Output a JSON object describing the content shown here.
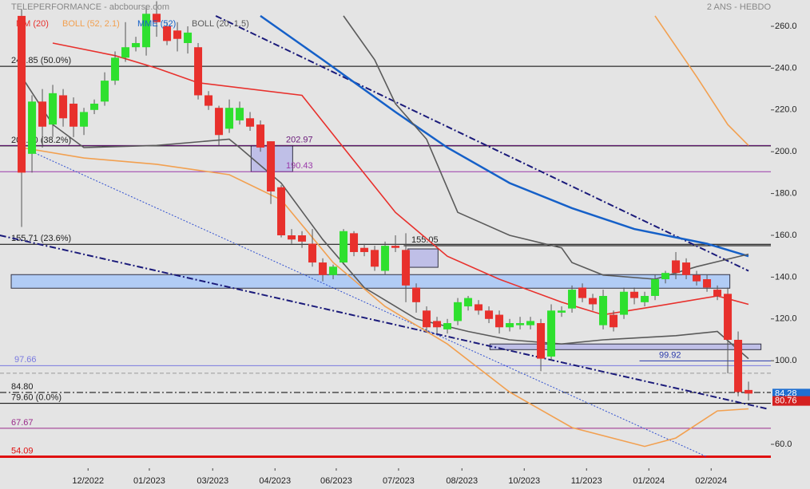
{
  "chart_data": {
    "type": "candlestick",
    "title": "TELEPERFORMANCE - abcbourse.com",
    "subtitle": "2 ANS - HEBDO",
    "up_color": "#2ee02e",
    "down_color": "#e8302c",
    "xlim": [
      -2.08,
      72.15
    ],
    "ylim": [
      47.4,
      272.6
    ],
    "xticks": [
      {
        "value": 6.4,
        "label": "12/2022"
      },
      {
        "value": 12.3,
        "label": "01/2023"
      },
      {
        "value": 18.4,
        "label": "03/2023"
      },
      {
        "value": 24.4,
        "label": "04/2023"
      },
      {
        "value": 30.3,
        "label": "06/2023"
      },
      {
        "value": 36.3,
        "label": "07/2023"
      },
      {
        "value": 42.4,
        "label": "08/2023"
      },
      {
        "value": 48.4,
        "label": "10/2023"
      },
      {
        "value": 54.4,
        "label": "11/2023"
      },
      {
        "value": 60.4,
        "label": "01/2024"
      },
      {
        "value": 66.4,
        "label": "02/2024"
      }
    ],
    "yticks": [
      {
        "value": 60,
        "label": "60.0"
      },
      {
        "value": 100,
        "label": "100.0"
      },
      {
        "value": 120,
        "label": "120.0"
      },
      {
        "value": 140,
        "label": "140.0"
      },
      {
        "value": 160,
        "label": "160.0"
      },
      {
        "value": 180,
        "label": "180.0"
      },
      {
        "value": 200,
        "label": "200.0"
      },
      {
        "value": 220,
        "label": "220.0"
      },
      {
        "value": 240,
        "label": "240.0"
      },
      {
        "value": 260,
        "label": "260.0"
      }
    ],
    "open": [
      265,
      199,
      224,
      213,
      227,
      223,
      212,
      220,
      224,
      234,
      245,
      250,
      250,
      266,
      260,
      258,
      252,
      250,
      227,
      221,
      211,
      215,
      216,
      213,
      205,
      183,
      160,
      160,
      156,
      147,
      141,
      147,
      161,
      154,
      153,
      143,
      155,
      153,
      135,
      124,
      119,
      115,
      119,
      126,
      127,
      124,
      122,
      116,
      117,
      117,
      118,
      102,
      123,
      125,
      135,
      130,
      117,
      122,
      122,
      133,
      128,
      131,
      139,
      148,
      147,
      141,
      139,
      134,
      132,
      110,
      86
    ],
    "high": [
      268,
      227,
      230,
      232,
      230,
      226,
      221,
      225,
      238,
      248,
      262,
      255,
      270,
      272,
      262,
      262,
      260,
      252,
      229,
      222,
      225,
      224,
      219,
      215,
      205,
      184,
      163,
      162,
      163,
      149,
      146,
      163,
      162,
      156,
      155,
      157,
      160,
      161,
      137,
      126,
      121,
      120,
      130,
      131,
      129,
      126,
      124,
      120,
      121,
      121,
      120,
      127,
      126,
      136,
      137,
      132,
      134,
      124,
      135,
      135,
      133,
      141,
      143,
      152,
      149,
      143,
      141,
      136,
      135,
      114,
      90
    ],
    "low": [
      164,
      190,
      202,
      207,
      212,
      207,
      208,
      218,
      222,
      232,
      243,
      248,
      246,
      255,
      251,
      248,
      247,
      225,
      220,
      203,
      209,
      213,
      210,
      200,
      175,
      159,
      156,
      154,
      145,
      138,
      139,
      146,
      150,
      150,
      143,
      141,
      152,
      128,
      123,
      114,
      113,
      113,
      117,
      124,
      122,
      118,
      113,
      114,
      115,
      115,
      95,
      100,
      121,
      123,
      128,
      124,
      115,
      114,
      120,
      127,
      126,
      129,
      137,
      139,
      139,
      136,
      133,
      129,
      94,
      83,
      81
    ],
    "close": [
      190,
      224,
      212,
      228,
      216,
      212,
      219,
      223,
      234,
      245,
      250,
      252,
      266,
      262,
      253,
      254,
      257,
      227,
      222,
      208,
      221,
      221,
      212,
      202,
      181,
      160,
      158,
      157,
      147,
      141,
      145,
      162,
      152,
      152,
      145,
      155,
      154,
      136,
      128,
      116,
      116,
      118,
      128,
      130,
      124,
      120,
      116,
      118,
      118,
      119,
      101,
      124,
      124,
      134,
      130,
      127,
      131,
      116,
      133,
      130,
      131,
      139,
      142,
      142,
      141,
      138,
      135,
      131,
      110,
      85,
      84.28
    ],
    "series": [
      {
        "name": "MM (20)",
        "color": "#e8302c",
        "x": [
          3,
          9,
          13,
          17,
          27,
          31,
          36,
          41,
          46,
          52,
          56,
          61,
          67,
          70
        ],
        "values": [
          252,
          246,
          240,
          233,
          227,
          202,
          171,
          150,
          139,
          128,
          122,
          126,
          131,
          127
        ]
      },
      {
        "name": "BOLL (52, 2.1)",
        "color": "#f2a050",
        "x": [
          61,
          65,
          68,
          70
        ],
        "values": [
          265,
          236,
          213,
          203
        ],
        "x2": [
          0,
          6,
          13,
          20,
          25,
          30,
          35,
          41,
          47,
          53,
          60,
          63,
          67,
          70
        ],
        "values2": [
          202,
          197,
          194,
          189,
          177,
          147,
          126,
          108,
          85,
          68,
          59,
          63,
          76,
          77
        ]
      },
      {
        "name": "MME (52)",
        "color": "#1560c8",
        "x": [
          23,
          29,
          36,
          41,
          47,
          53,
          59,
          66,
          70
        ],
        "values": [
          265,
          244,
          219,
          202,
          185,
          173,
          163,
          156,
          150
        ]
      },
      {
        "name": "BOLL (20, 1.5)",
        "color": "#5a5a5a",
        "x": [
          31,
          34,
          36,
          39,
          42,
          47,
          52,
          53,
          56,
          61,
          65,
          70
        ],
        "values": [
          265,
          244,
          223,
          206,
          171,
          160,
          154,
          147,
          141,
          139,
          145,
          151
        ],
        "x2": [
          0,
          3,
          6,
          13,
          20,
          21,
          25,
          29,
          33,
          38,
          43,
          47,
          52,
          56,
          63,
          67,
          70
        ],
        "values2": [
          236,
          213,
          202,
          203,
          206,
          202,
          185,
          158,
          135,
          120,
          114,
          110,
          108,
          110,
          112,
          114,
          101
        ]
      }
    ],
    "trendlines": [
      {
        "x": [
          18.7,
          70
        ],
        "y": [
          265,
          143
        ],
        "color": "#1a1a7a",
        "style": "dashdot"
      },
      {
        "x": [
          -2.1,
          71.8
        ],
        "y": [
          160,
          77
        ],
        "color": "#1a1a7a",
        "style": "dashdot"
      },
      {
        "x": [
          1,
          66
        ],
        "y": [
          200,
          54
        ],
        "color": "#3050d0",
        "style": "dotted"
      }
    ],
    "zones": [
      {
        "x": [
          22.1,
          26.1
        ],
        "y": [
          190.43,
          202.97
        ],
        "color": "#b8b8e8"
      },
      {
        "x": [
          37.2,
          40.1
        ],
        "y": [
          144.7,
          153.5
        ],
        "color": "#b8b8e8"
      },
      {
        "x": [
          -1,
          68.2
        ],
        "y": [
          134.7,
          141.2
        ],
        "color": "#a8c8f8"
      },
      {
        "x": [
          45.1,
          71.2
        ],
        "y": [
          105.3,
          108.0
        ],
        "color": "#b8b8e8"
      }
    ],
    "levels": [
      {
        "value": 240.85,
        "label": "240.85  (50.0%)",
        "color": "#000000"
      },
      {
        "value": 202.8,
        "label": "202.80  (38.2%)",
        "color": "#000000"
      },
      {
        "value": 202.97,
        "label": "202.97",
        "color": "#6a1a7a"
      },
      {
        "value": 190.43,
        "label": "190.43",
        "color": "#9a3aaa"
      },
      {
        "value": 155.71,
        "label": "155.71  (23.6%)",
        "color": "#000000"
      },
      {
        "value": 155.05,
        "label": "155.05",
        "color": "#000000",
        "from": 36.8
      },
      {
        "value": 99.92,
        "label": "99.92",
        "color": "#2a3aaa",
        "from": 59.5
      },
      {
        "value": 97.66,
        "label": "97.66",
        "color": "#7a7ae0"
      },
      {
        "value": 94,
        "color": "#999999",
        "style": "dashed"
      },
      {
        "value": 84.8,
        "label": "84.80",
        "color": "#000000",
        "style": "dashdot"
      },
      {
        "value": 79.6,
        "label": "79.60  (0.0%)",
        "color": "#000000"
      },
      {
        "value": 67.67,
        "label": "67.67",
        "color": "#9a2a8a"
      },
      {
        "value": 54.09,
        "label": "54.09",
        "color": "#e01010",
        "width": 3
      }
    ],
    "price_tags": [
      {
        "value": 84.28,
        "color": "#1f6fd1"
      },
      {
        "value": 80.76,
        "color": "#d42020"
      }
    ]
  }
}
